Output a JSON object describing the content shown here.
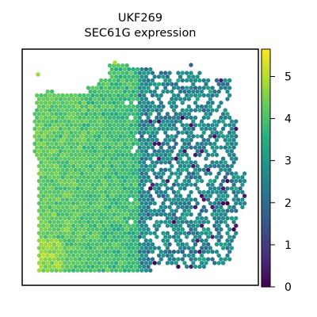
{
  "chart_data": {
    "type": "scatter",
    "title_line1": "UKF269",
    "title_line2": "SEC61G expression",
    "xlabel": "",
    "ylabel": "",
    "colormap": "viridis",
    "colorbar": {
      "range": [
        0,
        5.65
      ],
      "ticks": [
        {
          "value": 0,
          "label": "0"
        },
        {
          "value": 1,
          "label": "1"
        },
        {
          "value": 2,
          "label": "2"
        },
        {
          "value": 3,
          "label": "3"
        },
        {
          "value": 4,
          "label": "4"
        },
        {
          "value": 5,
          "label": "5"
        }
      ]
    },
    "spot_layout": "hexagonal",
    "regions": [
      {
        "name": "left tissue",
        "mean_expression": 4.2,
        "spread": 0.5
      },
      {
        "name": "right tissue",
        "mean_expression": 2.5,
        "spread": 0.7
      }
    ],
    "grid": false,
    "legend": "colorbar-right"
  }
}
